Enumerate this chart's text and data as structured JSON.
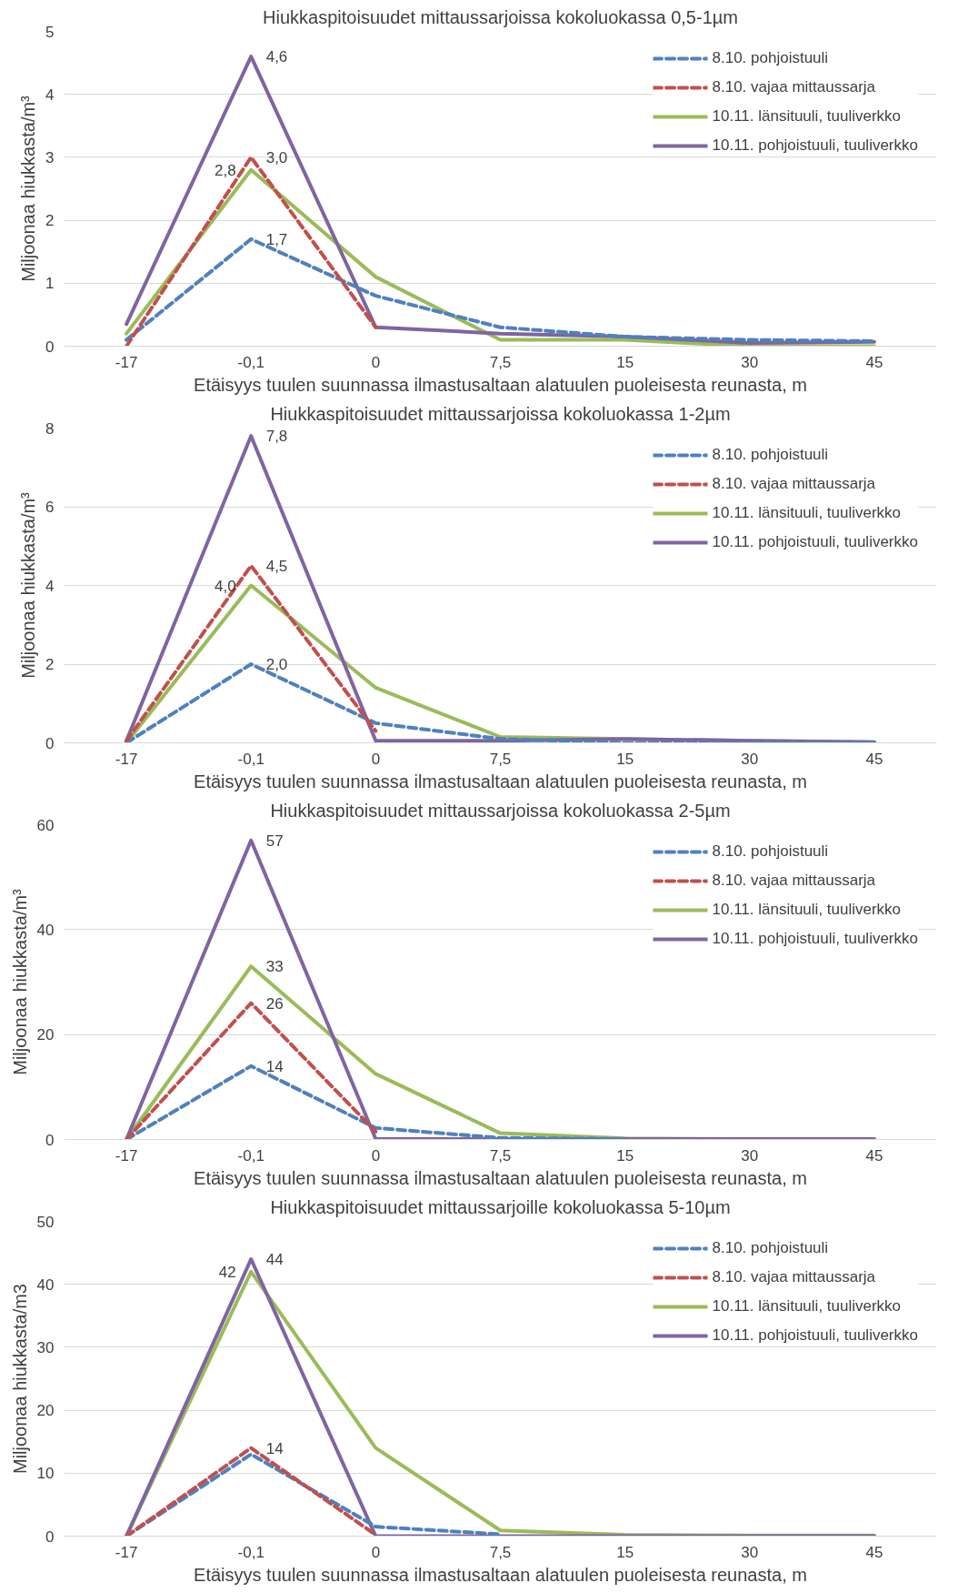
{
  "chart_data": [
    {
      "type": "line",
      "title": "Hiukkaspitoisuudet mittaussarjoissa kokoluokassa 0,5-1µm",
      "xlabel": "Etäisyys tuulen suunnassa ilmastusaltaan alatuulen puoleisesta reunasta, m",
      "ylabel": "Miljoonaa hiukkasta/m³",
      "categories": [
        "-17",
        "-0,1",
        "0",
        "7,5",
        "15",
        "30",
        "45"
      ],
      "ylim": [
        0,
        5
      ],
      "yticks": [
        0,
        1,
        2,
        3,
        4,
        5
      ],
      "grid": "y",
      "legend": "top right",
      "series": [
        {
          "name": "8.10. pohjoistuuli",
          "color": "#4f81bd",
          "line_style": "dashed",
          "values": [
            0.1,
            1.7,
            0.8,
            0.3,
            0.15,
            0.1,
            0.08
          ],
          "value_labels": [
            null,
            "1,7",
            null,
            null,
            null,
            null,
            null
          ]
        },
        {
          "name": "8.10. vajaa mittaussarja",
          "color": "#c0504d",
          "line_style": "dashed",
          "values": [
            0,
            3.0,
            0.3,
            null,
            null,
            null,
            null
          ],
          "value_labels": [
            null,
            "3,0",
            null,
            null,
            null,
            null,
            null
          ]
        },
        {
          "name": "10.11. länsituuli, tuuliverkko",
          "color": "#9bbb59",
          "line_style": "solid",
          "values": [
            0.2,
            2.8,
            1.1,
            0.1,
            0.1,
            0,
            0
          ],
          "value_labels": [
            null,
            "2,8",
            null,
            null,
            null,
            null,
            null
          ]
        },
        {
          "name": "10.11. pohjoistuuli, tuuliverkko",
          "color": "#8064a2",
          "line_style": "solid",
          "values": [
            0.35,
            4.6,
            0.3,
            0.2,
            0.15,
            0.05,
            0.07
          ],
          "value_labels": [
            null,
            "4,6",
            null,
            null,
            null,
            null,
            null
          ]
        }
      ]
    },
    {
      "type": "line",
      "title": "Hiukkaspitoisuudet mittaussarjoissa kokoluokassa 1-2µm",
      "xlabel": "Etäisyys tuulen suunnassa ilmastusaltaan alatuulen puoleisesta reunasta, m",
      "ylabel": "Miljoonaa hiukkasta/m³",
      "categories": [
        "-17",
        "-0,1",
        "0",
        "7,5",
        "15",
        "30",
        "45"
      ],
      "ylim": [
        0,
        8
      ],
      "yticks": [
        0,
        2,
        4,
        6,
        8
      ],
      "grid": "y",
      "legend": "top right",
      "series": [
        {
          "name": "8.10. pohjoistuuli",
          "color": "#4f81bd",
          "line_style": "dashed",
          "values": [
            0,
            2.0,
            0.5,
            0.1,
            0,
            0,
            0
          ],
          "value_labels": [
            null,
            "2,0",
            null,
            null,
            null,
            null,
            null
          ]
        },
        {
          "name": "8.10. vajaa mittaussarja",
          "color": "#c0504d",
          "line_style": "dashed",
          "values": [
            0.05,
            4.5,
            0.3,
            null,
            null,
            null,
            null
          ],
          "value_labels": [
            null,
            "4,5",
            null,
            null,
            null,
            null,
            null
          ]
        },
        {
          "name": "10.11. länsituuli, tuuliverkko",
          "color": "#9bbb59",
          "line_style": "solid",
          "values": [
            0,
            4.0,
            1.4,
            0.15,
            0.1,
            0.05,
            0.02
          ],
          "value_labels": [
            null,
            "4,0",
            null,
            null,
            null,
            null,
            null
          ]
        },
        {
          "name": "10.11. pohjoistuuli, tuuliverkko",
          "color": "#8064a2",
          "line_style": "solid",
          "values": [
            0.05,
            7.8,
            0.05,
            0.05,
            0.1,
            0.05,
            0.02
          ],
          "value_labels": [
            null,
            "7,8",
            null,
            null,
            null,
            null,
            null
          ]
        }
      ]
    },
    {
      "type": "line",
      "title": "Hiukkaspitoisuudet mittaussarjoissa kokoluokassa 2-5µm",
      "xlabel": "Etäisyys tuulen suunnassa ilmastusaltaan alatuulen puoleisesta reunasta, m",
      "ylabel": "Miljoonaa hiukkasta/m³",
      "categories": [
        "-17",
        "-0,1",
        "0",
        "7,5",
        "15",
        "30",
        "45"
      ],
      "ylim": [
        0,
        60
      ],
      "yticks": [
        0,
        20,
        40,
        60
      ],
      "grid": "y",
      "legend": "top right",
      "series": [
        {
          "name": "8.10. pohjoistuuli",
          "color": "#4f81bd",
          "line_style": "dashed",
          "values": [
            0,
            14,
            2.2,
            0.3,
            0.1,
            null,
            null
          ],
          "value_labels": [
            null,
            "14",
            null,
            null,
            null,
            null,
            null
          ]
        },
        {
          "name": "8.10. vajaa mittaussarja",
          "color": "#c0504d",
          "line_style": "dashed",
          "values": [
            0,
            26,
            1.5,
            null,
            null,
            null,
            null
          ],
          "value_labels": [
            null,
            "26",
            null,
            null,
            null,
            null,
            null
          ]
        },
        {
          "name": "10.11. länsituuli, tuuliverkko",
          "color": "#9bbb59",
          "line_style": "solid",
          "values": [
            0,
            33,
            12.5,
            1.2,
            0.2,
            0.1,
            0.1
          ],
          "value_labels": [
            null,
            "33",
            null,
            null,
            null,
            null,
            null
          ]
        },
        {
          "name": "10.11. pohjoistuuli, tuuliverkko",
          "color": "#8064a2",
          "line_style": "solid",
          "values": [
            0,
            57,
            0.1,
            0.1,
            0.1,
            0.1,
            0.1
          ],
          "value_labels": [
            null,
            "57",
            null,
            null,
            null,
            null,
            null
          ]
        }
      ]
    },
    {
      "type": "line",
      "title": "Hiukkaspitoisuudet mittaussarjoille kokoluokassa 5-10µm",
      "xlabel": "Etäisyys tuulen suunnassa ilmastusaltaan alatuulen puoleisesta reunasta, m",
      "ylabel": "Miljoonaa hiukkasta/m3",
      "categories": [
        "-17",
        "-0,1",
        "0",
        "7,5",
        "15",
        "30",
        "45"
      ],
      "ylim": [
        0,
        50
      ],
      "yticks": [
        0,
        10,
        20,
        30,
        40,
        50
      ],
      "grid": "y",
      "legend": "top right",
      "series": [
        {
          "name": "8.10. pohjoistuuli",
          "color": "#4f81bd",
          "line_style": "dashed",
          "values": [
            0,
            13,
            1.5,
            0.3,
            null,
            null,
            null
          ]
        },
        {
          "name": "8.10. vajaa mittaussarja",
          "color": "#c0504d",
          "line_style": "dashed",
          "values": [
            0,
            14,
            0.2,
            null,
            null,
            null,
            null
          ],
          "value_labels": [
            null,
            "14",
            null,
            null,
            null,
            null,
            null
          ]
        },
        {
          "name": "10.11. länsituuli, tuuliverkko",
          "color": "#9bbb59",
          "line_style": "solid",
          "values": [
            0,
            42,
            14,
            0.9,
            0.2,
            0.1,
            0.1
          ],
          "value_labels": [
            null,
            "42",
            null,
            null,
            null,
            null,
            null
          ]
        },
        {
          "name": "10.11. pohjoistuuli, tuuliverkko",
          "color": "#8064a2",
          "line_style": "solid",
          "values": [
            0,
            44,
            0,
            0,
            0,
            0,
            0
          ],
          "value_labels": [
            null,
            "44",
            null,
            null,
            null,
            null,
            null
          ]
        }
      ]
    }
  ]
}
